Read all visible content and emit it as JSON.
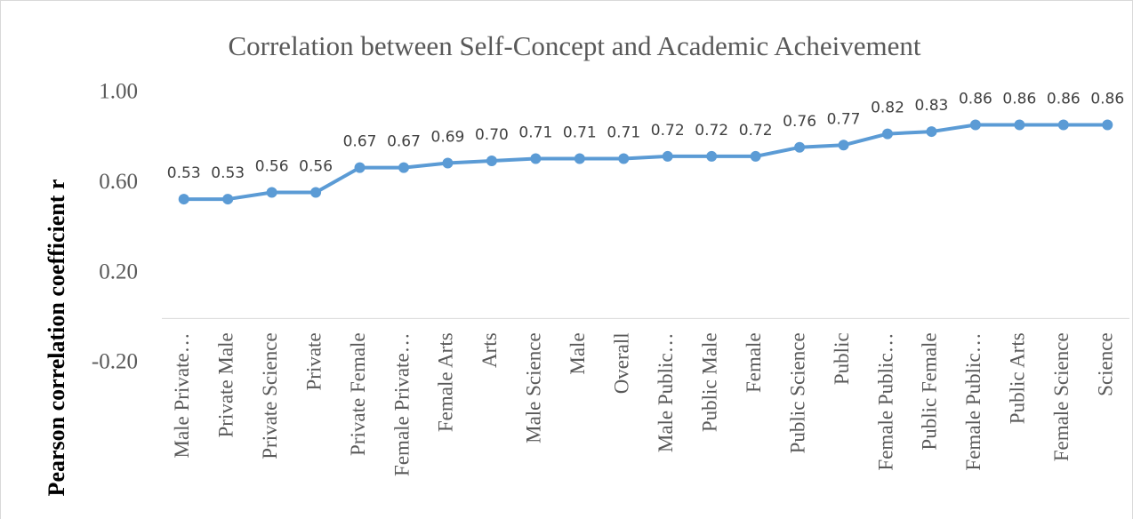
{
  "chart_data": {
    "type": "line",
    "title": "Correlation between Self-Concept and Academic Acheivement",
    "y_label": "Pearson correlation coefficient r",
    "categories": [
      "Male Private…",
      "Private Male",
      "Private Science",
      "Private",
      "Private Female",
      "Female Private…",
      "Female Arts",
      "Arts",
      "Male Science",
      "Male",
      "Overall",
      "Male Public…",
      "Public Male",
      "Female",
      "Public Science",
      "Public",
      "Female Public…",
      "Public Female",
      "Female Public…",
      "Public Arts",
      "Female Science",
      "Science"
    ],
    "values": [
      0.53,
      0.53,
      0.56,
      0.56,
      0.67,
      0.67,
      0.69,
      0.7,
      0.71,
      0.71,
      0.71,
      0.72,
      0.72,
      0.72,
      0.76,
      0.77,
      0.82,
      0.83,
      0.86,
      0.86,
      0.86,
      0.86
    ],
    "value_labels": [
      "0.53",
      "0.53",
      "0.56",
      "0.56",
      "0.67",
      "0.67",
      "0.69",
      "0.70",
      "0.71",
      "0.71",
      "0.71",
      "0.72",
      "0.72",
      "0.72",
      "0.76",
      "0.77",
      "0.82",
      "0.83",
      "0.86",
      "0.86",
      "0.86",
      "0.86"
    ],
    "color": "#5b9bd5",
    "ylim": [
      -0.2,
      1.0
    ],
    "yticks": [
      {
        "value": -0.2,
        "label": "-0.20"
      },
      {
        "value": 0.2,
        "label": "0.20"
      },
      {
        "value": 0.6,
        "label": "0.60"
      },
      {
        "value": 1.0,
        "label": "1.00"
      }
    ],
    "grid": false
  }
}
